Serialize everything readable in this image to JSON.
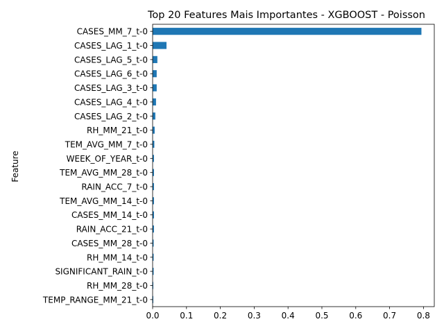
{
  "chart_data": {
    "type": "bar",
    "orientation": "horizontal",
    "title": "Top 20 Features Mais Importantes - XGBOOST - Poisson",
    "xlabel": "",
    "ylabel": "Feature",
    "xlim": [
      0,
      0.832
    ],
    "xticks": [
      "0.0",
      "0.1",
      "0.2",
      "0.3",
      "0.4",
      "0.5",
      "0.6",
      "0.7",
      "0.8"
    ],
    "grid": false,
    "categories": [
      "CASES_MM_7_t-0",
      "CASES_LAG_1_t-0",
      "CASES_LAG_5_t-0",
      "CASES_LAG_6_t-0",
      "CASES_LAG_3_t-0",
      "CASES_LAG_4_t-0",
      "CASES_LAG_2_t-0",
      "RH_MM_21_t-0",
      "TEM_AVG_MM_7_t-0",
      "WEEK_OF_YEAR_t-0",
      "TEM_AVG_MM_28_t-0",
      "RAIN_ACC_7_t-0",
      "TEM_AVG_MM_14_t-0",
      "CASES_MM_14_t-0",
      "RAIN_ACC_21_t-0",
      "CASES_MM_28_t-0",
      "RH_MM_14_t-0",
      "SIGNIFICANT_RAIN_t-0",
      "RH_MM_28_t-0",
      "TEMP_RANGE_MM_21_t-0"
    ],
    "values": [
      0.794,
      0.041,
      0.014,
      0.012,
      0.012,
      0.01,
      0.008,
      0.006,
      0.005,
      0.004,
      0.004,
      0.004,
      0.004,
      0.004,
      0.004,
      0.003,
      0.003,
      0.003,
      0.002,
      0.002
    ],
    "bar_color": "#1f77b4"
  }
}
